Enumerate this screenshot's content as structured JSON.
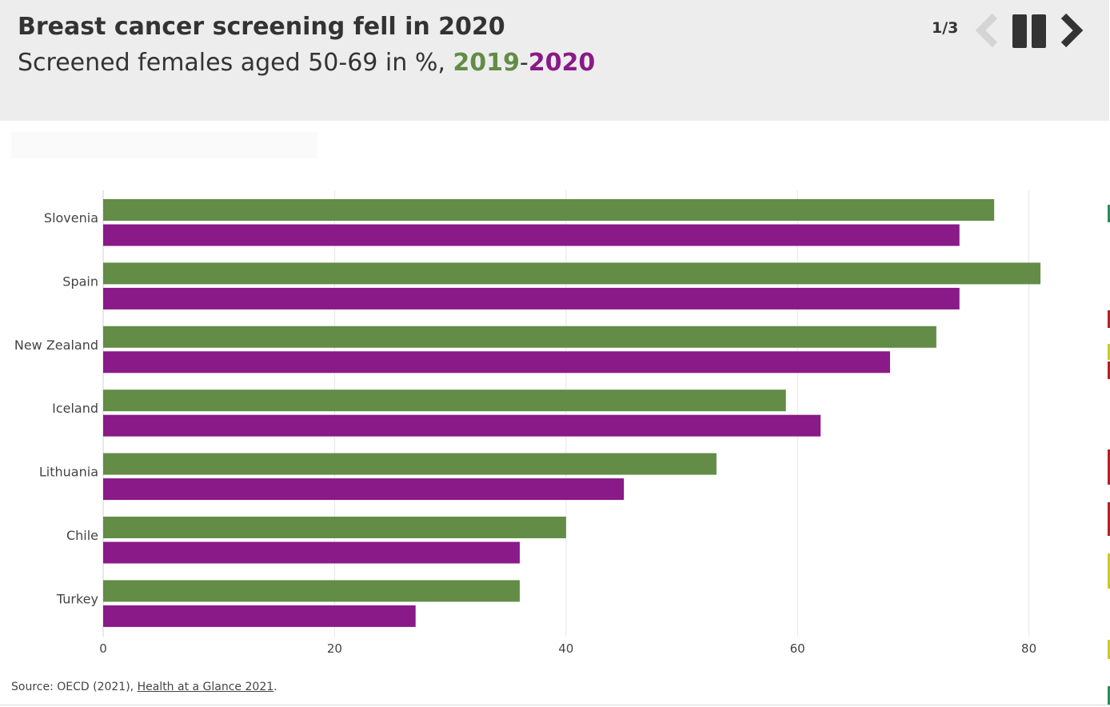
{
  "header": {
    "title": "Breast cancer screening fell in 2020",
    "subtitle_prefix": "Screened females aged 50-69 in %,",
    "year_a": "2019",
    "separator": "-",
    "year_b": "2020",
    "page_counter": "1/3"
  },
  "controls": {
    "prev_icon": "chevron-left-icon",
    "pause_icon": "pause-icon",
    "next_icon": "chevron-right-icon"
  },
  "colors": {
    "series_2019": "#638c47",
    "series_2020": "#891a87",
    "header_bg": "#ededed",
    "grid": "#e5e5e5"
  },
  "chart_data": {
    "type": "bar",
    "orientation": "horizontal",
    "title": "Breast cancer screening fell in 2020",
    "subtitle": "Screened females aged 50-69 in %, 2019-2020",
    "categories": [
      "Slovenia",
      "Spain",
      "New Zealand",
      "Iceland",
      "Lithuania",
      "Chile",
      "Turkey"
    ],
    "series": [
      {
        "name": "2019",
        "values": [
          77,
          81,
          72,
          59,
          53,
          40,
          36
        ]
      },
      {
        "name": "2020",
        "values": [
          74,
          74,
          68,
          62,
          45,
          36,
          27
        ]
      }
    ],
    "xlim": [
      0,
      85
    ],
    "xticks": [
      0,
      20,
      40,
      60,
      80
    ],
    "xlabel": "",
    "ylabel": "",
    "grid": true
  },
  "footer": {
    "source_prefix": "Source: OECD (2021), ",
    "source_link": "Health at a Glance 2021",
    "source_suffix": "."
  }
}
